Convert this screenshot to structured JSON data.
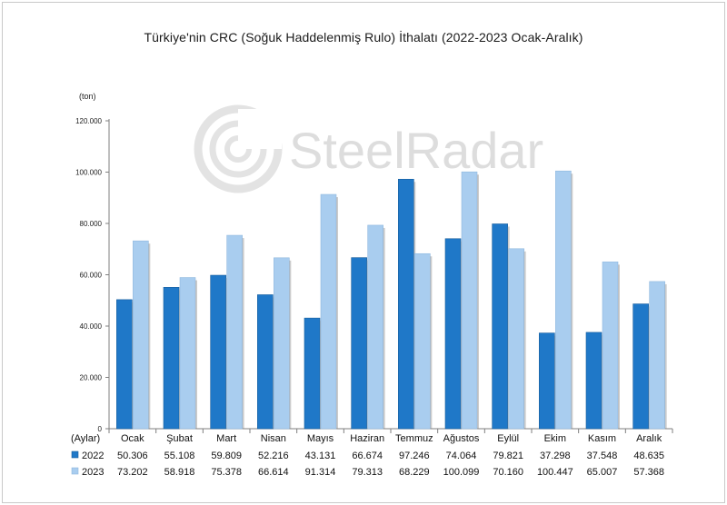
{
  "watermark": "SteelRadar",
  "chart_data": {
    "type": "bar",
    "title": "Türkiye'nin CRC (Soğuk Haddelenmiş Rulo) İthalatı (2022-2023 Ocak-Aralık)",
    "unit_label": "(ton)",
    "table_header_label": "(Aylar)",
    "categories": [
      "Ocak",
      "Şubat",
      "Mart",
      "Nisan",
      "Mayıs",
      "Haziran",
      "Temmuz",
      "Ağustos",
      "Eylül",
      "Ekim",
      "Kasım",
      "Aralık"
    ],
    "series": [
      {
        "name": "2022",
        "color": "#1f78c8",
        "values": [
          50306,
          55108,
          59809,
          52216,
          43131,
          66674,
          97246,
          74064,
          79821,
          37298,
          37548,
          48635
        ],
        "labels": [
          "50.306",
          "55.108",
          "59.809",
          "52.216",
          "43.131",
          "66.674",
          "97.246",
          "74.064",
          "79.821",
          "37.298",
          "37.548",
          "48.635"
        ]
      },
      {
        "name": "2023",
        "color": "#a9cdef",
        "values": [
          73202,
          58918,
          75378,
          66614,
          91314,
          79313,
          68229,
          100099,
          70160,
          100447,
          65007,
          57368
        ],
        "labels": [
          "73.202",
          "58.918",
          "75.378",
          "66.614",
          "91.314",
          "79.313",
          "68.229",
          "100.099",
          "70.160",
          "100.447",
          "65.007",
          "57.368"
        ]
      }
    ],
    "ylim": [
      0,
      120000
    ],
    "yticks": [
      0,
      20000,
      40000,
      60000,
      80000,
      100000,
      120000
    ],
    "ytick_labels": [
      "0",
      "20.000",
      "40.000",
      "60.000",
      "80.000",
      "100.000",
      "120.000"
    ],
    "grid": false,
    "legend": "bottom data table"
  }
}
